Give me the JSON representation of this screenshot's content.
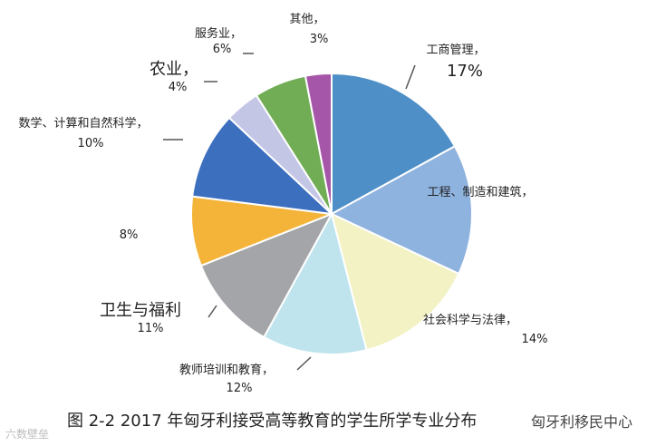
{
  "chart_data": {
    "type": "pie",
    "title": "图 2-2   2017 年匈牙利接受高等教育的学生所学专业分布",
    "slices": [
      {
        "label": "工商管理，",
        "percent_label": "17%",
        "value": 17,
        "color": "#4f8fc8"
      },
      {
        "label": "工程、制造和建筑，",
        "percent_label": "",
        "value": 15,
        "color": "#8fb3df"
      },
      {
        "label": "社会科学与法律，",
        "percent_label": "14%",
        "value": 14,
        "color": "#f2f2c4"
      },
      {
        "label": "教师培训和教育，",
        "percent_label": "12%",
        "value": 12,
        "color": "#bfe4ee"
      },
      {
        "label": "卫生与福利",
        "percent_label": "11%",
        "value": 11,
        "color": "#a4a5a8"
      },
      {
        "label": "",
        "percent_label": "8%",
        "value": 8,
        "color": "#f4b43a"
      },
      {
        "label": "数学、计算和自然科学，",
        "percent_label": "10%",
        "value": 10,
        "color": "#3d6fbf"
      },
      {
        "label": "农业，",
        "percent_label": "4%",
        "value": 4,
        "color": "#c4c6e6"
      },
      {
        "label": "服务业，",
        "percent_label": "6%",
        "value": 6,
        "color": "#71ad54"
      },
      {
        "label": "其他，",
        "percent_label": "3%",
        "value": 3,
        "color": "#a656a8"
      }
    ]
  },
  "watermark_right": "匈牙利移民中心",
  "watermark_left": "六数壁垒"
}
